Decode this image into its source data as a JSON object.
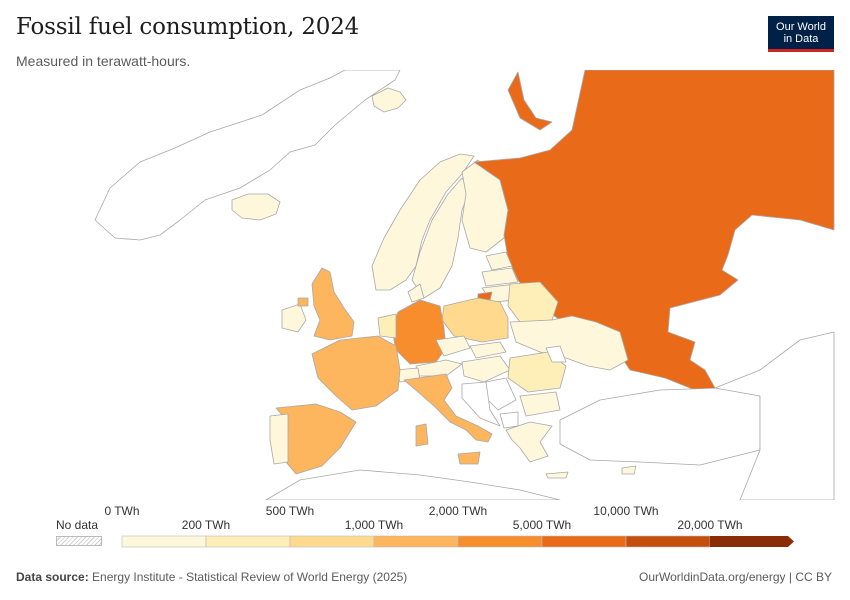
{
  "header": {
    "title": "Fossil fuel consumption, 2024",
    "subtitle": "Measured in terawatt-hours.",
    "logo_line1": "Our World",
    "logo_line2": "in Data"
  },
  "legend": {
    "no_data_label": "No data",
    "bins": [
      {
        "label": "0 TWh",
        "color": "#fff7dc"
      },
      {
        "label": "200 TWh",
        "color": "#feeeb7"
      },
      {
        "label": "500 TWh",
        "color": "#fed98e"
      },
      {
        "label": "1,000 TWh",
        "color": "#fdb55e"
      },
      {
        "label": "2,000 TWh",
        "color": "#f88d2e"
      },
      {
        "label": "5,000 TWh",
        "color": "#e96b19"
      },
      {
        "label": "10,000 TWh",
        "color": "#c44f0c"
      },
      {
        "label": "20,000 TWh",
        "color": "#8a2c06"
      }
    ]
  },
  "colors": {
    "no_data_fill": "#ffffff",
    "border": "#a8a8a8"
  },
  "footer": {
    "source_label": "Data source:",
    "source_text": "Energy Institute - Statistical Review of World Energy (2025)",
    "right_text": "OurWorldinData.org/energy | CC BY"
  }
}
